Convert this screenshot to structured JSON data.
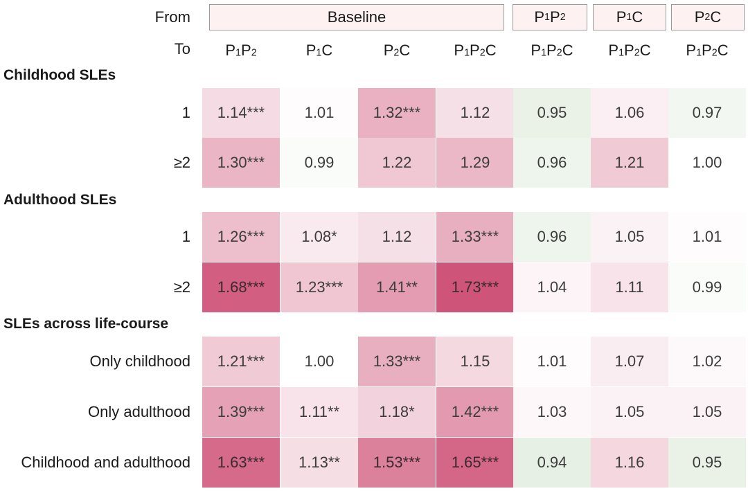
{
  "row_from_label": "From",
  "row_to_label": "To",
  "header_groups": [
    {
      "label": "Baseline",
      "span": 4
    },
    {
      "label": "P₁P₂",
      "span": 1
    },
    {
      "label": "P₁C",
      "span": 1
    },
    {
      "label": "P₂C",
      "span": 1
    }
  ],
  "to_columns": [
    "P₁P₂",
    "P₁C",
    "P₂C",
    "P₁P₂C",
    "P₁P₂C",
    "P₁P₂C",
    "P₁P₂C"
  ],
  "colors": {
    "low": "#e6f0e4",
    "neutral": "#ffffff",
    "high": "#cf5479",
    "header_fill": "#fdf1f1",
    "header_border": "#9a9a9a"
  },
  "chart_data": {
    "type": "heatmap",
    "title": "",
    "columns": [
      {
        "from": "Baseline",
        "to": "P₁P₂"
      },
      {
        "from": "Baseline",
        "to": "P₁C"
      },
      {
        "from": "Baseline",
        "to": "P₂C"
      },
      {
        "from": "Baseline",
        "to": "P₁P₂C"
      },
      {
        "from": "P₁P₂",
        "to": "P₁P₂C"
      },
      {
        "from": "P₁C",
        "to": "P₁P₂C"
      },
      {
        "from": "P₂C",
        "to": "P₁P₂C"
      }
    ],
    "sections": [
      {
        "title": "Childhood SLEs",
        "rows": [
          {
            "label": "1",
            "values": [
              1.14,
              1.01,
              1.32,
              1.12,
              0.95,
              1.06,
              0.97
            ],
            "labels": [
              "1.14***",
              "1.01",
              "1.32***",
              "1.12",
              "0.95",
              "1.06",
              "0.97"
            ]
          },
          {
            "label": "≥2",
            "values": [
              1.3,
              0.99,
              1.22,
              1.29,
              0.96,
              1.21,
              1.0
            ],
            "labels": [
              "1.30***",
              "0.99",
              "1.22",
              "1.29",
              "0.96",
              "1.21",
              "1.00"
            ]
          }
        ]
      },
      {
        "title": "Adulthood SLEs",
        "rows": [
          {
            "label": "1",
            "values": [
              1.26,
              1.08,
              1.12,
              1.33,
              0.96,
              1.05,
              1.01
            ],
            "labels": [
              "1.26***",
              "1.08*",
              "1.12",
              "1.33***",
              "0.96",
              "1.05",
              "1.01"
            ]
          },
          {
            "label": "≥2",
            "values": [
              1.68,
              1.23,
              1.41,
              1.73,
              1.04,
              1.11,
              0.99
            ],
            "labels": [
              "1.68***",
              "1.23***",
              "1.41**",
              "1.73***",
              "1.04",
              "1.11",
              "0.99"
            ]
          }
        ]
      },
      {
        "title": "SLEs across life-course",
        "rows": [
          {
            "label": "Only childhood",
            "values": [
              1.21,
              1.0,
              1.33,
              1.15,
              1.01,
              1.07,
              1.02
            ],
            "labels": [
              "1.21***",
              "1.00",
              "1.33***",
              "1.15",
              "1.01",
              "1.07",
              "1.02"
            ]
          },
          {
            "label": "Only adulthood",
            "values": [
              1.39,
              1.11,
              1.18,
              1.42,
              1.03,
              1.05,
              1.05
            ],
            "labels": [
              "1.39***",
              "1.11**",
              "1.18*",
              "1.42***",
              "1.03",
              "1.05",
              "1.05"
            ]
          },
          {
            "label": "Childhood and adulthood",
            "values": [
              1.63,
              1.13,
              1.53,
              1.65,
              0.94,
              1.16,
              0.95
            ],
            "labels": [
              "1.63***",
              "1.13**",
              "1.53***",
              "1.65***",
              "0.94",
              "1.16",
              "0.95"
            ]
          }
        ]
      }
    ]
  }
}
